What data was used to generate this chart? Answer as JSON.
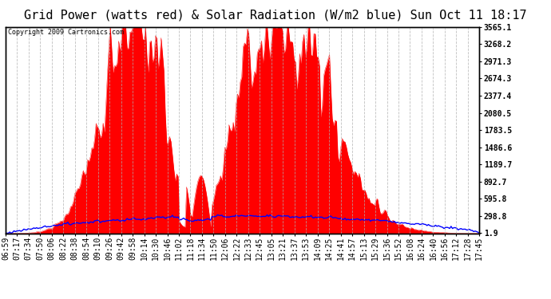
{
  "title": "Grid Power (watts red) & Solar Radiation (W/m2 blue) Sun Oct 11 18:17",
  "copyright": "Copyright 2009 Cartronics.com",
  "yticks": [
    1.9,
    298.8,
    595.8,
    892.7,
    1189.7,
    1486.6,
    1783.5,
    2080.5,
    2377.4,
    2674.3,
    2971.3,
    3268.2,
    3565.1
  ],
  "ymin": 0,
  "ymax": 3565.1,
  "xtick_labels": [
    "06:59",
    "07:17",
    "07:34",
    "07:50",
    "08:06",
    "08:22",
    "08:38",
    "08:54",
    "09:10",
    "09:26",
    "09:42",
    "09:58",
    "10:14",
    "10:30",
    "10:46",
    "11:02",
    "11:18",
    "11:34",
    "11:50",
    "12:06",
    "12:22",
    "12:33",
    "12:45",
    "13:05",
    "13:21",
    "13:37",
    "13:53",
    "14:09",
    "14:25",
    "14:41",
    "14:57",
    "15:13",
    "15:29",
    "15:36",
    "15:52",
    "16:08",
    "16:24",
    "16:40",
    "16:56",
    "17:12",
    "17:28",
    "17:45"
  ],
  "background_color": "#ffffff",
  "plot_bg_color": "#ffffff",
  "grid_color": "#b0b0b0",
  "red_color": "#ff0000",
  "blue_color": "#0000ff",
  "title_fontsize": 11,
  "tick_fontsize": 7
}
